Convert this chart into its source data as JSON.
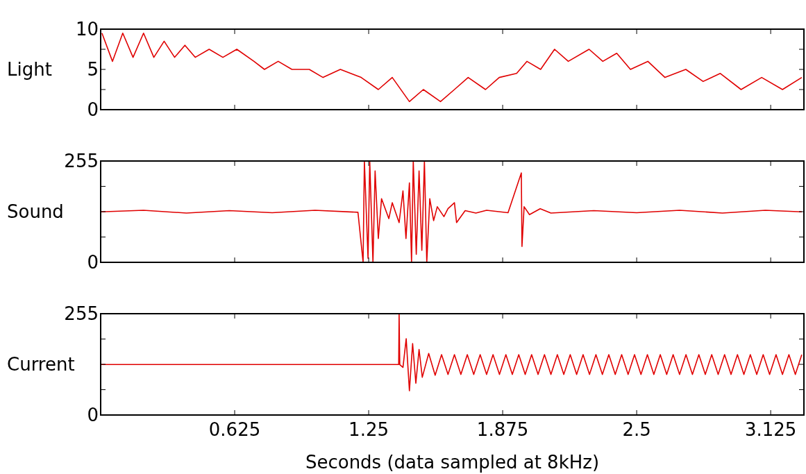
{
  "chart_data": [
    {
      "type": "line",
      "ylabel": "Light",
      "xlim": [
        0,
        3.28
      ],
      "xticks": [
        0.625,
        1.25,
        1.875,
        2.5,
        3.125
      ],
      "ylim": [
        0,
        10
      ],
      "yticks": [
        0,
        {
          "value": 2.5,
          "label": null
        },
        5,
        {
          "value": 7.5,
          "label": null
        },
        10
      ],
      "tick_labels": "y",
      "grid": false,
      "x": [
        0.006,
        0.055,
        0.103,
        0.151,
        0.2,
        0.248,
        0.296,
        0.345,
        0.393,
        0.441,
        0.506,
        0.57,
        0.635,
        0.715,
        0.764,
        0.828,
        0.892,
        0.973,
        1.037,
        1.118,
        1.215,
        1.295,
        1.36,
        1.44,
        1.505,
        1.585,
        1.65,
        1.714,
        1.795,
        1.859,
        1.94,
        1.988,
        2.052,
        2.117,
        2.181,
        2.278,
        2.342,
        2.407,
        2.471,
        2.552,
        2.632,
        2.729,
        2.81,
        2.89,
        2.987,
        3.083,
        3.18,
        3.27
      ],
      "series": [
        {
          "color": "#e00000",
          "values": [
            9.5,
            6.0,
            9.5,
            6.5,
            9.5,
            6.5,
            8.5,
            6.5,
            8.0,
            6.5,
            7.5,
            6.5,
            7.5,
            6.0,
            5.0,
            6.0,
            5.0,
            5.0,
            4.0,
            5.0,
            4.0,
            2.5,
            4.0,
            1.0,
            2.5,
            1.0,
            2.5,
            4.0,
            2.5,
            4.0,
            4.5,
            6.0,
            5.0,
            7.5,
            6.0,
            7.5,
            6.0,
            7.0,
            5.0,
            6.0,
            4.0,
            5.0,
            3.5,
            4.5,
            2.5,
            4.0,
            2.5,
            4.0
          ]
        }
      ]
    },
    {
      "type": "line",
      "ylabel": "Sound",
      "xlim": [
        0,
        3.28
      ],
      "xticks": [
        0.625,
        1.25,
        1.875,
        2.5,
        3.125
      ],
      "ylim": [
        0,
        255
      ],
      "yticks": [
        0,
        {
          "value": 63.75,
          "label": null
        },
        {
          "value": 127.5,
          "label": null
        },
        {
          "value": 191.25,
          "label": null
        },
        255
      ],
      "tick_labels": "y",
      "grid": false,
      "x": [
        0,
        0.2,
        0.4,
        0.6,
        0.8,
        1.0,
        1.2,
        1.224,
        1.23,
        1.247,
        1.255,
        1.27,
        1.28,
        1.295,
        1.31,
        1.344,
        1.36,
        1.392,
        1.41,
        1.424,
        1.44,
        1.45,
        1.458,
        1.472,
        1.485,
        1.498,
        1.51,
        1.521,
        1.535,
        1.553,
        1.57,
        1.601,
        1.62,
        1.65,
        1.66,
        1.7,
        1.75,
        1.8,
        1.9,
        1.962,
        1.965,
        1.975,
        2.0,
        2.05,
        2.1,
        2.3,
        2.5,
        2.7,
        2.9,
        3.1,
        3.27
      ],
      "series": [
        {
          "color": "#e00000",
          "values": [
            127,
            131,
            124,
            130,
            125,
            131,
            126,
            0,
            255,
            10,
            255,
            0,
            230,
            60,
            160,
            110,
            150,
            100,
            180,
            60,
            200,
            0,
            255,
            20,
            230,
            30,
            255,
            0,
            160,
            105,
            140,
            115,
            135,
            150,
            100,
            130,
            124,
            131,
            125,
            225,
            40,
            140,
            120,
            135,
            124,
            130,
            125,
            131,
            124,
            131,
            127
          ]
        }
      ]
    },
    {
      "type": "line",
      "ylabel": "Current",
      "xlabel": "Seconds (data sampled at 8kHz)",
      "xlim": [
        0,
        3.28
      ],
      "xticks": [
        0.625,
        1.25,
        1.875,
        2.5,
        3.125
      ],
      "ylim": [
        0,
        255
      ],
      "yticks": [
        0,
        {
          "value": 63.75,
          "label": null
        },
        {
          "value": 127.5,
          "label": null
        },
        {
          "value": 191.25,
          "label": null
        },
        255
      ],
      "grid": false,
      "x": [
        0,
        1.39,
        1.392,
        1.395,
        1.41,
        1.425,
        1.44,
        1.455,
        1.47,
        1.485,
        1.5,
        1.53,
        1.56,
        1.59,
        1.62,
        1.65,
        1.68,
        1.71,
        1.74,
        1.77,
        1.8,
        1.83,
        1.86,
        1.89,
        1.92,
        1.95,
        1.98,
        2.01,
        2.04,
        2.07,
        2.1,
        2.13,
        2.16,
        2.19,
        2.22,
        2.25,
        2.28,
        2.31,
        2.34,
        2.37,
        2.4,
        2.43,
        2.46,
        2.49,
        2.52,
        2.55,
        2.58,
        2.61,
        2.64,
        2.67,
        2.7,
        2.73,
        2.76,
        2.79,
        2.82,
        2.85,
        2.88,
        2.91,
        2.94,
        2.97,
        3.0,
        3.03,
        3.06,
        3.09,
        3.12,
        3.15,
        3.18,
        3.21,
        3.24,
        3.27
      ],
      "series": [
        {
          "color": "#e00000",
          "values": [
            127,
            127,
            255,
            127,
            120,
            192,
            61,
            180,
            80,
            165,
            95,
            155,
            100,
            152,
            102,
            152,
            102,
            152,
            102,
            152,
            102,
            152,
            102,
            152,
            102,
            152,
            102,
            152,
            102,
            152,
            102,
            152,
            102,
            152,
            102,
            152,
            102,
            152,
            102,
            152,
            102,
            152,
            102,
            152,
            102,
            152,
            102,
            152,
            102,
            152,
            102,
            152,
            102,
            152,
            102,
            152,
            102,
            152,
            102,
            152,
            102,
            152,
            102,
            152,
            102,
            152,
            102,
            152,
            102,
            152
          ]
        }
      ]
    }
  ]
}
